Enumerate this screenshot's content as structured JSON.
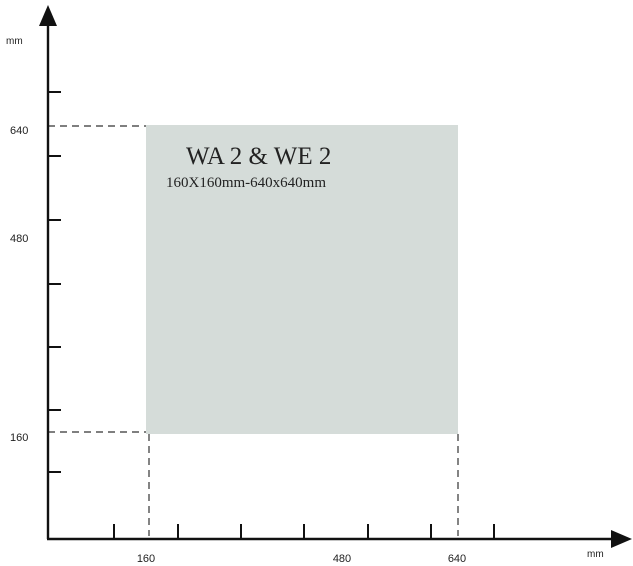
{
  "axes": {
    "y_unit": "mm",
    "x_unit": "mm",
    "y_tick_labels": [
      "640",
      "480",
      "160"
    ],
    "x_tick_labels": [
      "160",
      "480",
      "640"
    ]
  },
  "area": {
    "title": "WA 2 & WE 2",
    "subtitle": "160X160mm-640x640mm",
    "fill_color": "#d5dcd9",
    "range_mm": {
      "min": 160,
      "max": 640
    }
  }
}
